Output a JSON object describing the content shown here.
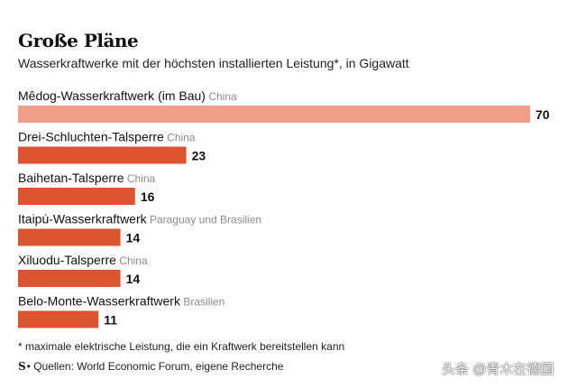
{
  "chart_data": {
    "type": "bar",
    "orientation": "horizontal",
    "title": "Große Pläne",
    "subtitle": "Wasserkraftwerke mit der höchsten installierten Leistung*, in Gigawatt",
    "categories": [
      "Mêdog-Wasserkraftwerk (im Bau)",
      "Drei-Schluchten-Talsperre",
      "Baihetan-Talsperre",
      "Itaipú-Wasserkraftwerk",
      "Xiluodu-Talsperre",
      "Belo-Monte-Wasserkraftwerk"
    ],
    "countries": [
      "China",
      "China",
      "China",
      "Paraguay und Brasilien",
      "China",
      "Brasilien"
    ],
    "values": [
      70,
      23,
      16,
      14,
      14,
      11
    ],
    "xlim": [
      0,
      70
    ],
    "grid": false,
    "legend": "none",
    "colors": {
      "highlight": "#ef9f8a",
      "bar": "#dc5430",
      "country": "#8a8a8a",
      "value": "#111111"
    }
  },
  "footnote": "* maximale elektrische Leistung, die ein Kraftwerk bereitstellen kann",
  "source": {
    "logo": "S",
    "text": "• Quellen: World Economic Forum, eigene Recherche"
  },
  "watermark": "头条 @青木在德国"
}
